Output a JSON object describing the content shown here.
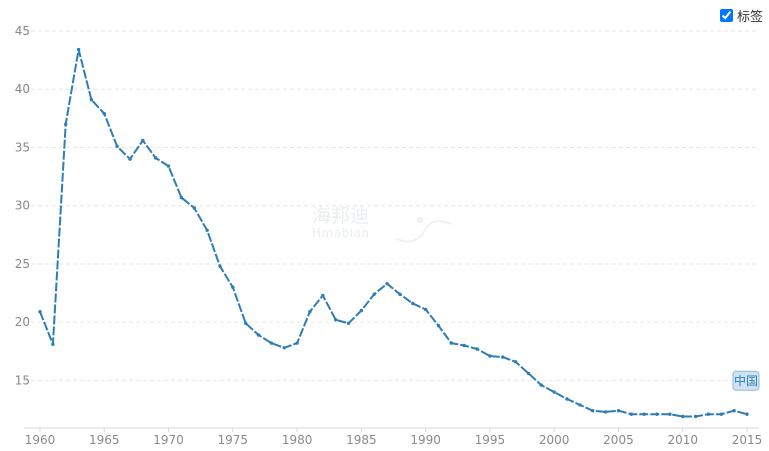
{
  "controls": {
    "label_toggle_text": "标签",
    "label_toggle_checked": true
  },
  "watermark": {
    "text": "海邦迪",
    "subtext": "Hmabian"
  },
  "colors": {
    "line": "#2e7db4",
    "grid": "#e6e6e6",
    "badge_bg": "#cfe3f4",
    "badge_border": "#8fb9dd",
    "badge_text": "#2e7db4"
  },
  "chart_data": {
    "type": "line",
    "title": "",
    "xlabel": "",
    "ylabel": "",
    "xlim": [
      1960,
      2015
    ],
    "ylim": [
      11,
      45
    ],
    "x_ticks": [
      1960,
      1965,
      1970,
      1975,
      1980,
      1985,
      1990,
      1995,
      2000,
      2005,
      2010,
      2015
    ],
    "y_ticks": [
      15,
      20,
      25,
      30,
      35,
      40,
      45
    ],
    "grid": true,
    "series": [
      {
        "name": "中国",
        "x": [
          1960,
          1961,
          1962,
          1963,
          1964,
          1965,
          1966,
          1967,
          1968,
          1969,
          1970,
          1971,
          1972,
          1973,
          1974,
          1975,
          1976,
          1977,
          1978,
          1979,
          1980,
          1981,
          1982,
          1983,
          1984,
          1985,
          1986,
          1987,
          1988,
          1989,
          1990,
          1991,
          1992,
          1993,
          1994,
          1995,
          1996,
          1997,
          1998,
          1999,
          2000,
          2001,
          2002,
          2003,
          2004,
          2005,
          2006,
          2007,
          2008,
          2009,
          2010,
          2011,
          2012,
          2013,
          2014,
          2015
        ],
        "y": [
          20.9,
          18.1,
          37.0,
          43.4,
          39.1,
          37.9,
          35.1,
          34.0,
          35.6,
          34.1,
          33.4,
          30.7,
          29.8,
          27.9,
          24.8,
          23.0,
          19.9,
          18.9,
          18.2,
          17.8,
          18.2,
          20.9,
          22.3,
          20.2,
          19.9,
          21.0,
          22.4,
          23.3,
          22.4,
          21.6,
          21.1,
          19.7,
          18.2,
          18.0,
          17.7,
          17.1,
          17.0,
          16.6,
          15.6,
          14.6,
          14.0,
          13.4,
          12.9,
          12.4,
          12.3,
          12.4,
          12.1,
          12.1,
          12.1,
          12.1,
          11.9,
          11.9,
          12.1,
          12.1,
          12.4,
          12.1
        ]
      }
    ]
  }
}
